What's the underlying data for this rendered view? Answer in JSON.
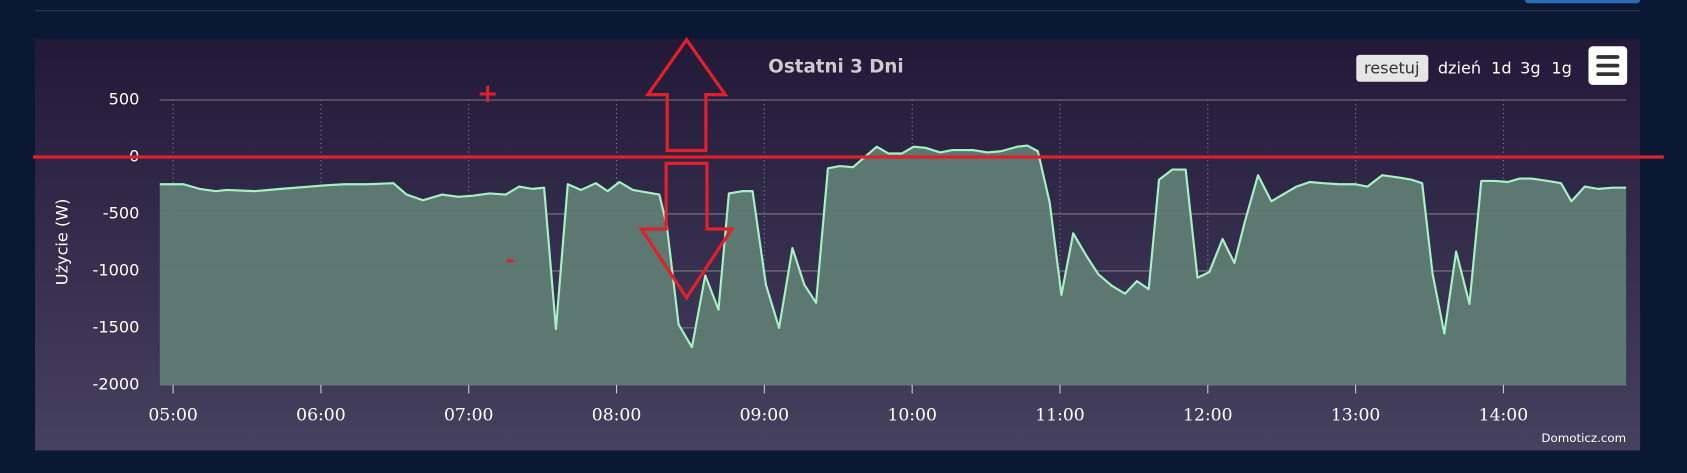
{
  "chart_data": {
    "type": "area",
    "title": "Ostatni 3 Dni",
    "y_axis_label": "Użycie (W)",
    "color": "#a6f2c6",
    "fill": "#5f7c73",
    "grid": true,
    "xlim": [
      4.91,
      14.83
    ],
    "ylim": [
      -2000,
      500
    ],
    "yticks": [
      500,
      0,
      -500,
      -1000,
      -1500,
      -2000
    ],
    "xticks": [
      {
        "value": 5,
        "label": "05:00"
      },
      {
        "value": 6,
        "label": "06:00"
      },
      {
        "value": 7,
        "label": "07:00"
      },
      {
        "value": 8,
        "label": "08:00"
      },
      {
        "value": 9,
        "label": "09:00"
      },
      {
        "value": 10,
        "label": "10:00"
      },
      {
        "value": 11,
        "label": "11:00"
      },
      {
        "value": 12,
        "label": "12:00"
      },
      {
        "value": 13,
        "label": "13:00"
      },
      {
        "value": 14,
        "label": "14:00"
      }
    ],
    "x": [
      4.91,
      5.07,
      5.18,
      5.29,
      5.36,
      5.55,
      5.73,
      6.02,
      6.16,
      6.31,
      6.49,
      6.58,
      6.69,
      6.82,
      6.93,
      7.03,
      7.14,
      7.25,
      7.34,
      7.43,
      7.51,
      7.59,
      7.67,
      7.76,
      7.86,
      7.94,
      8.02,
      8.11,
      8.2,
      8.29,
      8.34,
      8.42,
      8.51,
      8.6,
      8.69,
      8.76,
      8.85,
      8.92,
      9.01,
      9.1,
      9.19,
      9.27,
      9.35,
      9.43,
      9.51,
      9.6,
      9.67,
      9.76,
      9.84,
      9.93,
      10.01,
      10.09,
      10.19,
      10.27,
      10.41,
      10.51,
      10.6,
      10.71,
      10.78,
      10.85,
      10.93,
      11.01,
      11.09,
      11.18,
      11.26,
      11.35,
      11.44,
      11.52,
      11.6,
      11.67,
      11.76,
      11.85,
      11.93,
      12.01,
      12.1,
      12.18,
      12.25,
      12.34,
      12.43,
      12.52,
      12.6,
      12.69,
      12.78,
      12.89,
      13.0,
      13.08,
      13.18,
      13.29,
      13.38,
      13.45,
      13.52,
      13.6,
      13.68,
      13.77,
      13.85,
      13.94,
      14.03,
      14.11,
      14.19,
      14.3,
      14.39,
      14.46,
      14.55,
      14.64,
      14.74,
      14.83
    ],
    "values": [
      -240,
      -240,
      -280,
      -300,
      -290,
      -300,
      -280,
      -250,
      -240,
      -240,
      -230,
      -330,
      -380,
      -330,
      -350,
      -340,
      -320,
      -330,
      -260,
      -280,
      -270,
      -1510,
      -240,
      -290,
      -230,
      -300,
      -220,
      -290,
      -310,
      -330,
      -600,
      -1470,
      -1670,
      -1040,
      -1340,
      -320,
      -300,
      -300,
      -1120,
      -1500,
      -800,
      -1120,
      -1280,
      -100,
      -80,
      -90,
      -10,
      90,
      30,
      30,
      90,
      80,
      40,
      60,
      60,
      40,
      50,
      90,
      100,
      50,
      -400,
      -1210,
      -670,
      -870,
      -1030,
      -1130,
      -1200,
      -1090,
      -1160,
      -200,
      -110,
      -110,
      -1060,
      -1010,
      -720,
      -930,
      -570,
      -160,
      -390,
      -320,
      -260,
      -220,
      -230,
      -240,
      -240,
      -260,
      -160,
      -180,
      -200,
      -230,
      -1020,
      -1550,
      -830,
      -1290,
      -210,
      -210,
      -220,
      -190,
      -190,
      -210,
      -230,
      -390,
      -260,
      -280,
      -270,
      -270
    ],
    "annotations": [
      "+",
      "-"
    ],
    "buttons": [
      "resetuj",
      "dzień",
      "1d",
      "3g",
      "1g"
    ],
    "credit": "Domoticz.com"
  }
}
